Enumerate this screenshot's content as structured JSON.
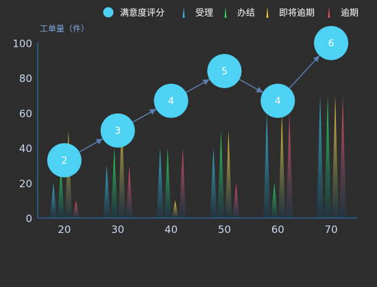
{
  "chart_data": {
    "type": "bar",
    "categories": [
      "20",
      "30",
      "40",
      "50",
      "60",
      "70"
    ],
    "ylabel": "工单量（件）",
    "ylim": [
      0,
      100
    ],
    "yticks": [
      0,
      20,
      40,
      60,
      80,
      100
    ],
    "legend_position": "top-right",
    "series": [
      {
        "name": "满意度评分",
        "kind": "bubble-line",
        "values": [
          2,
          3,
          4,
          5,
          4,
          6
        ],
        "positions": [
          33,
          50,
          67,
          84,
          67,
          100
        ],
        "color": "#4dd2f4"
      },
      {
        "name": "受理",
        "kind": "pictorial-spike",
        "values": [
          20,
          30,
          40,
          40,
          60,
          70
        ],
        "color": "#3ab6d8"
      },
      {
        "name": "办结",
        "kind": "pictorial-spike",
        "values": [
          30,
          40,
          40,
          50,
          20,
          70
        ],
        "color": "#2fd35e"
      },
      {
        "name": "即将逾期",
        "kind": "pictorial-spike",
        "values": [
          50,
          60,
          10,
          50,
          60,
          70
        ],
        "color": "#f0c93e"
      },
      {
        "name": "逾期",
        "kind": "pictorial-spike",
        "values": [
          10,
          30,
          40,
          20,
          60,
          70
        ],
        "color": "#e24f64"
      }
    ],
    "colors": {
      "axis": "#2c7fd0",
      "tick_text": "#c8d8f0",
      "legend_text": "#ffffff",
      "arrow": "#5a7fb0",
      "background": "#2d2d2d"
    }
  }
}
